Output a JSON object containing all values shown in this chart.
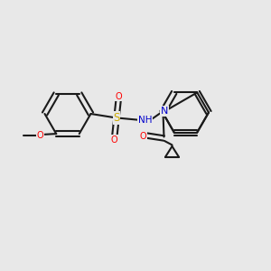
{
  "background_color": "#e8e8e8",
  "bond_color": "#1a1a1a",
  "atom_colors": {
    "O": "#ff0000",
    "N": "#0000cc",
    "S": "#ccaa00",
    "C": "#1a1a1a",
    "H": "#1a1a1a"
  },
  "figsize": [
    3.0,
    3.0
  ],
  "dpi": 100
}
